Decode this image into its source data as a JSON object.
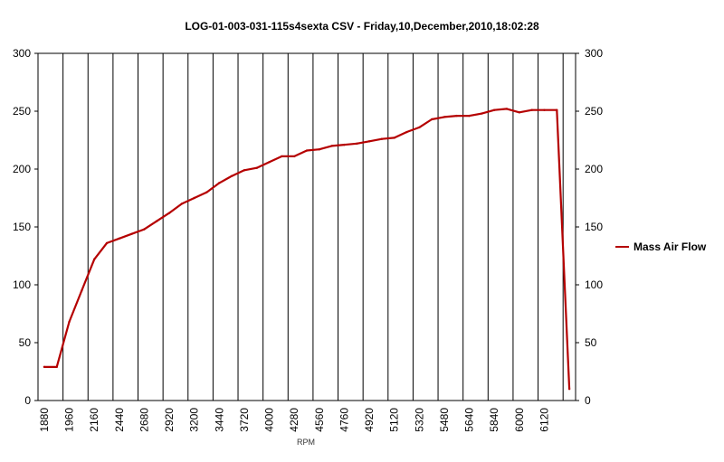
{
  "chart_data": {
    "type": "line",
    "title": "LOG-01-003-031-115s4sexta CSV - Friday,10,December,2010,18:02:28",
    "xlabel": "RPM",
    "ylabel": "",
    "ylim": [
      0,
      300
    ],
    "y_ticks": [
      "0",
      "50",
      "100",
      "150",
      "200",
      "250",
      "300"
    ],
    "x_tick_labels": [
      "1880",
      "1960",
      "2160",
      "2440",
      "2680",
      "2920",
      "3200",
      "3440",
      "3720",
      "4000",
      "4280",
      "4560",
      "4760",
      "4920",
      "5120",
      "5320",
      "5480",
      "5640",
      "5840",
      "6000",
      "6120"
    ],
    "grid": "vertical",
    "legend_position": "right",
    "color": "#b50000",
    "series": [
      {
        "name": "Mass Air Flow",
        "values": [
          29,
          29,
          68,
          95,
          122,
          136,
          140,
          144,
          148,
          155,
          162,
          170,
          175,
          180,
          188,
          194,
          199,
          201,
          206,
          211,
          211,
          216,
          217,
          220,
          221,
          222,
          224,
          226,
          227,
          232,
          236,
          243,
          245,
          246,
          246,
          248,
          251,
          252,
          249,
          251,
          251,
          251,
          10
        ]
      }
    ]
  }
}
